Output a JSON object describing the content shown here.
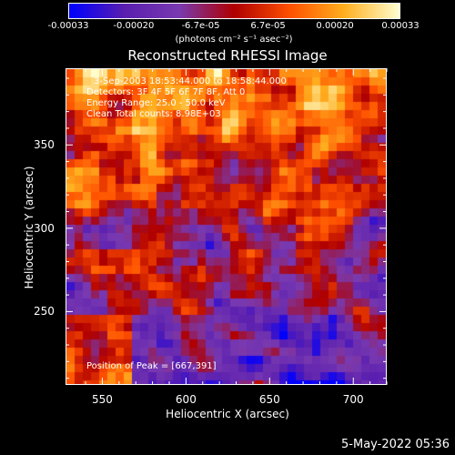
{
  "colorbar": {
    "ticks": [
      "-0.00033",
      "-0.00020",
      "-6.7e-05",
      "6.7e-05",
      "0.00020",
      "0.00033"
    ],
    "tick_values": [
      -0.00033,
      -0.0002,
      -6.7e-05,
      6.7e-05,
      0.0002,
      0.00033
    ],
    "unit_label": "(photons cm⁻² s⁻¹ asec⁻²)",
    "colors": [
      "#0000ff",
      "#5a1fb0",
      "#7a3ab0",
      "#b00000",
      "#ff5000",
      "#ffb020",
      "#ffffd0"
    ]
  },
  "annotations": {
    "time_range": "3-Sep-2003 18:53:44.000 to 18:58:44.000",
    "detectors": "Detectors: 3F 4F 5F 6F 7F 8F, Att 0",
    "energy_range": "Energy Range: 25.0 - 50.0 keV",
    "algorithm": "Clean     Total counts: 8.98E+03",
    "peak_position": "Position of Peak = [667,391]"
  },
  "footer": {
    "date": "5-May-2022 05:36"
  },
  "chart_data": {
    "type": "heatmap",
    "title": "Reconstructed RHESSI Image",
    "xlabel": "Heliocentric X (arcsec)",
    "ylabel": "Heliocentric Y (arcsec)",
    "xlim": [
      528,
      720
    ],
    "ylim": [
      206,
      396
    ],
    "x_ticks": [
      550,
      600,
      650,
      700
    ],
    "x_tick_labels": [
      "550",
      "600",
      "650",
      "700"
    ],
    "y_ticks": [
      250,
      300,
      350
    ],
    "y_tick_labels": [
      "250",
      "300",
      "350"
    ],
    "value_range": [
      -0.00033,
      0.00033
    ],
    "peak": [
      667,
      391
    ],
    "grid": false
  }
}
